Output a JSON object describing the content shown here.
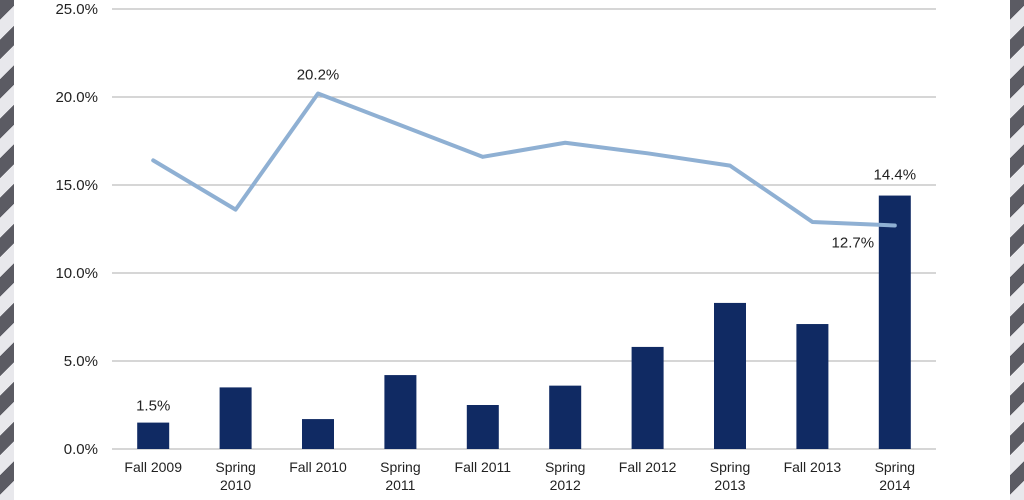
{
  "chart_data": {
    "type": "bar",
    "categories": [
      [
        "Fall 2009"
      ],
      [
        "Spring",
        "2010"
      ],
      [
        "Fall 2010"
      ],
      [
        "Spring",
        "2011"
      ],
      [
        "Fall 2011"
      ],
      [
        "Spring",
        "2012"
      ],
      [
        "Fall 2012"
      ],
      [
        "Spring",
        "2013"
      ],
      [
        "Fall 2013"
      ],
      [
        "Spring",
        "2014"
      ]
    ],
    "series": [
      {
        "type": "bar",
        "color": "#102a63",
        "values": [
          1.5,
          3.5,
          1.7,
          4.2,
          2.5,
          3.6,
          5.8,
          8.3,
          7.1,
          14.4
        ]
      },
      {
        "type": "line",
        "color": "#8fb0d3",
        "values": [
          16.4,
          13.6,
          20.2,
          18.4,
          16.6,
          17.4,
          16.8,
          16.1,
          12.9,
          12.7
        ]
      }
    ],
    "data_labels": [
      {
        "series": 0,
        "index": 0,
        "text": "1.5%"
      },
      {
        "series": 1,
        "index": 2,
        "text": "20.2%"
      },
      {
        "series": 0,
        "index": 9,
        "text": "14.4%"
      },
      {
        "series": 1,
        "index": 9,
        "text": "12.7%"
      }
    ],
    "yticks": [
      "0.0%",
      "5.0%",
      "10.0%",
      "15.0%",
      "20.0%",
      "25.0%"
    ],
    "ylim": [
      0,
      25
    ],
    "grid": true,
    "gridColor": "#bdbdbd",
    "legend": false
  }
}
